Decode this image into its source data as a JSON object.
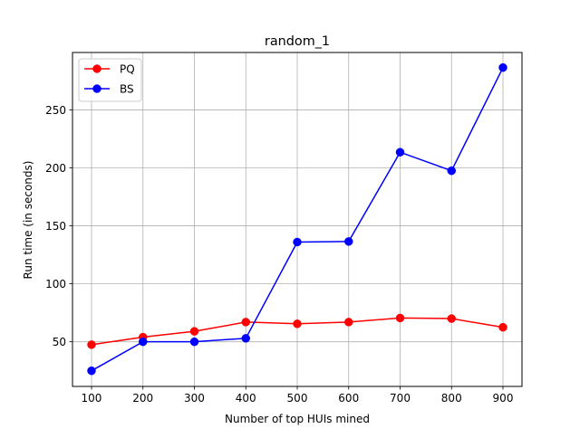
{
  "chart_data": {
    "type": "line",
    "title": "random_1",
    "xlabel": "Number of top HUIs mined",
    "ylabel": "Run time (in seconds)",
    "x": [
      100,
      200,
      300,
      400,
      500,
      600,
      700,
      800,
      900
    ],
    "xlim": [
      63,
      937
    ],
    "ylim": [
      11.5,
      299.5
    ],
    "xticks": [
      100,
      200,
      300,
      400,
      500,
      600,
      700,
      800,
      900
    ],
    "yticks": [
      50,
      100,
      150,
      200,
      250
    ],
    "grid": true,
    "legend": {
      "position": "top-left"
    },
    "series": [
      {
        "name": "PQ",
        "color": "#ff0000",
        "marker": "circle",
        "values": [
          47.5,
          54,
          59,
          67,
          65.5,
          67,
          70.5,
          70,
          62.5
        ]
      },
      {
        "name": "BS",
        "color": "#0000ff",
        "marker": "circle",
        "values": [
          25,
          50,
          50,
          53,
          136,
          136.5,
          213.5,
          197.5,
          286.5
        ]
      }
    ]
  }
}
